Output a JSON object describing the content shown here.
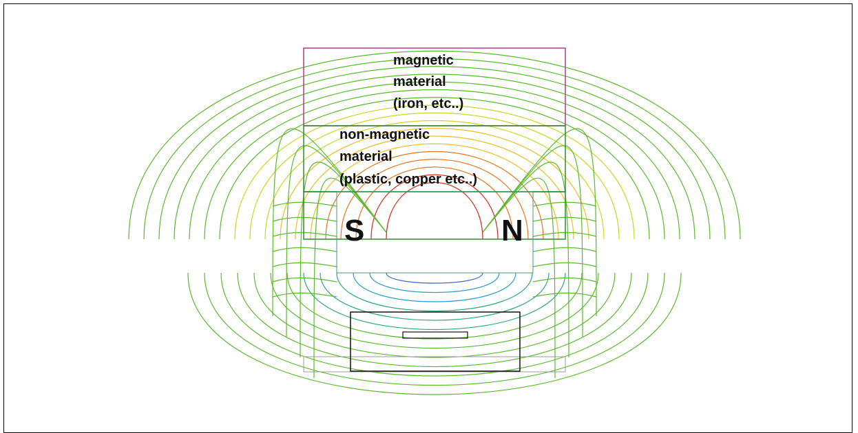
{
  "diagram": {
    "labels": {
      "iron": [
        "magnetic",
        "material",
        "(iron, etc..)"
      ],
      "plastic": [
        "non-magnetic",
        "material",
        "(plastic, copper etc..)"
      ],
      "pole_south": "S",
      "pole_north": "N"
    },
    "colors": {
      "iron_outline": "#b03a8a",
      "region_outline": "#2e8b2e",
      "sensor_outline": "#111111",
      "field_gradient": [
        "#d42a1a",
        "#e8741c",
        "#e8c020",
        "#c8d820",
        "#5cb82c",
        "#2ea87a",
        "#2aa0c8",
        "#3a6ad0"
      ]
    }
  }
}
